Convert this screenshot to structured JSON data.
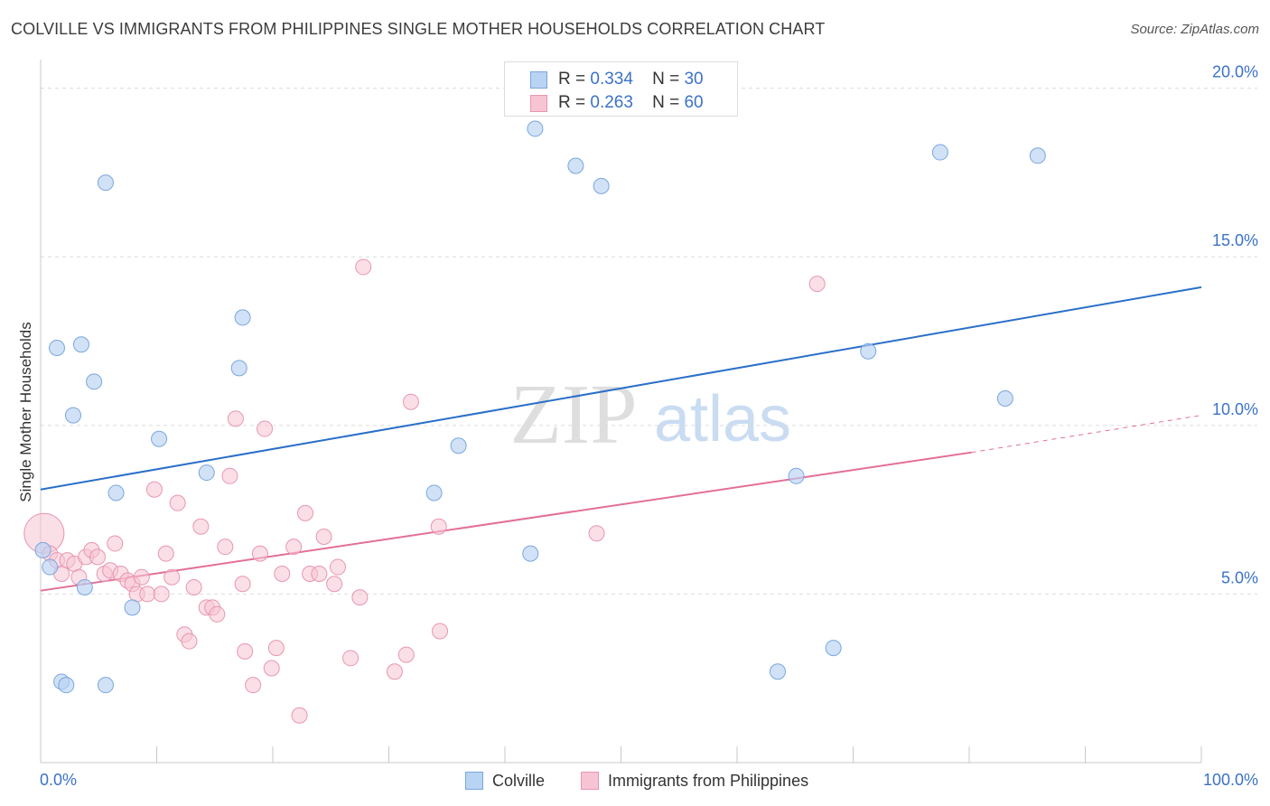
{
  "title": "COLVILLE VS IMMIGRANTS FROM PHILIPPINES SINGLE MOTHER HOUSEHOLDS CORRELATION CHART",
  "source": "Source: ZipAtlas.com",
  "watermark": {
    "zip": "ZIP",
    "atlas": "atlas"
  },
  "legend_top": [
    {
      "r_label": "R =",
      "r_value": "0.334",
      "n_label": "N =",
      "n_value": "30"
    },
    {
      "r_label": "R =",
      "r_value": "0.263",
      "n_label": "N =",
      "n_value": "60"
    }
  ],
  "legend_bottom": [
    "Colville",
    "Immigrants from Philippines"
  ],
  "colors": {
    "blue_fill": "#b9d3f3",
    "blue_stroke": "#7aa6de",
    "blue_line": "#2a6fc9",
    "pink_fill": "#f7c4d3",
    "pink_stroke": "#e896b0",
    "pink_line": "#e36f98",
    "axis_label": "#3b72c8",
    "grid": "#dcdcdc"
  },
  "chart_data": {
    "type": "scatter",
    "title": "COLVILLE VS IMMIGRANTS FROM PHILIPPINES SINGLE MOTHER HOUSEHOLDS CORRELATION CHART",
    "xlabel": "",
    "ylabel": "Single Mother Households",
    "xlim": [
      0,
      100
    ],
    "ylim": [
      0,
      20.5
    ],
    "x_tick_labels": [
      "0.0%",
      "100.0%"
    ],
    "y_ticks": [
      5,
      10,
      15,
      20
    ],
    "y_tick_labels": [
      "5.0%",
      "10.0%",
      "15.0%",
      "20.0%"
    ],
    "grid": true,
    "legend_position": "top-center",
    "series": [
      {
        "name": "Colville",
        "color": "#b9d3f3",
        "points": [
          [
            0.2,
            6.3
          ],
          [
            0.8,
            5.8
          ],
          [
            1.4,
            12.3
          ],
          [
            1.8,
            2.4
          ],
          [
            2.2,
            2.3
          ],
          [
            2.8,
            10.3
          ],
          [
            3.5,
            12.4
          ],
          [
            3.8,
            5.2
          ],
          [
            4.6,
            11.3
          ],
          [
            5.6,
            17.2
          ],
          [
            5.6,
            2.3
          ],
          [
            6.5,
            8.0
          ],
          [
            7.9,
            4.6
          ],
          [
            10.2,
            9.6
          ],
          [
            14.3,
            8.6
          ],
          [
            17.1,
            11.7
          ],
          [
            17.4,
            13.2
          ],
          [
            33.9,
            8.0
          ],
          [
            36.0,
            9.4
          ],
          [
            42.2,
            6.2
          ],
          [
            42.6,
            18.8
          ],
          [
            46.1,
            17.7
          ],
          [
            48.3,
            17.1
          ],
          [
            63.5,
            2.7
          ],
          [
            65.1,
            8.5
          ],
          [
            68.3,
            3.4
          ],
          [
            71.3,
            12.2
          ],
          [
            77.5,
            18.1
          ],
          [
            83.1,
            10.8
          ],
          [
            85.9,
            18.0
          ]
        ],
        "trend": {
          "x": [
            0,
            100
          ],
          "y": [
            8.1,
            14.1
          ]
        }
      },
      {
        "name": "Immigrants from Philippines",
        "color": "#f7c4d3",
        "points": [
          [
            0.3,
            6.8
          ],
          [
            0.8,
            6.2
          ],
          [
            1.4,
            6.0
          ],
          [
            1.8,
            5.6
          ],
          [
            2.3,
            6.0
          ],
          [
            2.9,
            5.9
          ],
          [
            3.3,
            5.5
          ],
          [
            3.9,
            6.1
          ],
          [
            4.4,
            6.3
          ],
          [
            4.9,
            6.1
          ],
          [
            5.5,
            5.6
          ],
          [
            6.0,
            5.7
          ],
          [
            6.4,
            6.5
          ],
          [
            6.9,
            5.6
          ],
          [
            7.5,
            5.4
          ],
          [
            7.9,
            5.3
          ],
          [
            8.3,
            5.0
          ],
          [
            8.7,
            5.5
          ],
          [
            9.2,
            5.0
          ],
          [
            9.8,
            8.1
          ],
          [
            10.4,
            5.0
          ],
          [
            10.8,
            6.2
          ],
          [
            11.3,
            5.5
          ],
          [
            11.8,
            7.7
          ],
          [
            12.4,
            3.8
          ],
          [
            12.8,
            3.6
          ],
          [
            13.2,
            5.2
          ],
          [
            13.8,
            7.0
          ],
          [
            14.3,
            4.6
          ],
          [
            14.8,
            4.6
          ],
          [
            15.2,
            4.4
          ],
          [
            15.9,
            6.4
          ],
          [
            16.3,
            8.5
          ],
          [
            16.8,
            10.2
          ],
          [
            17.4,
            5.3
          ],
          [
            17.6,
            3.3
          ],
          [
            18.3,
            2.3
          ],
          [
            18.9,
            6.2
          ],
          [
            19.3,
            9.9
          ],
          [
            19.9,
            2.8
          ],
          [
            20.3,
            3.4
          ],
          [
            20.8,
            5.6
          ],
          [
            21.8,
            6.4
          ],
          [
            22.3,
            1.4
          ],
          [
            22.8,
            7.4
          ],
          [
            23.2,
            5.6
          ],
          [
            24.0,
            5.6
          ],
          [
            24.4,
            6.7
          ],
          [
            25.3,
            5.3
          ],
          [
            25.6,
            5.8
          ],
          [
            26.7,
            3.1
          ],
          [
            27.5,
            4.9
          ],
          [
            27.8,
            14.7
          ],
          [
            30.5,
            2.7
          ],
          [
            31.5,
            3.2
          ],
          [
            31.9,
            10.7
          ],
          [
            34.3,
            7.0
          ],
          [
            34.4,
            3.9
          ],
          [
            47.9,
            6.8
          ],
          [
            66.9,
            14.2
          ]
        ],
        "trend": {
          "x": [
            0,
            80.2
          ],
          "y": [
            5.1,
            9.2
          ]
        },
        "trend_dashed": {
          "x": [
            80.2,
            100
          ],
          "y": [
            9.2,
            10.3
          ]
        }
      }
    ]
  }
}
